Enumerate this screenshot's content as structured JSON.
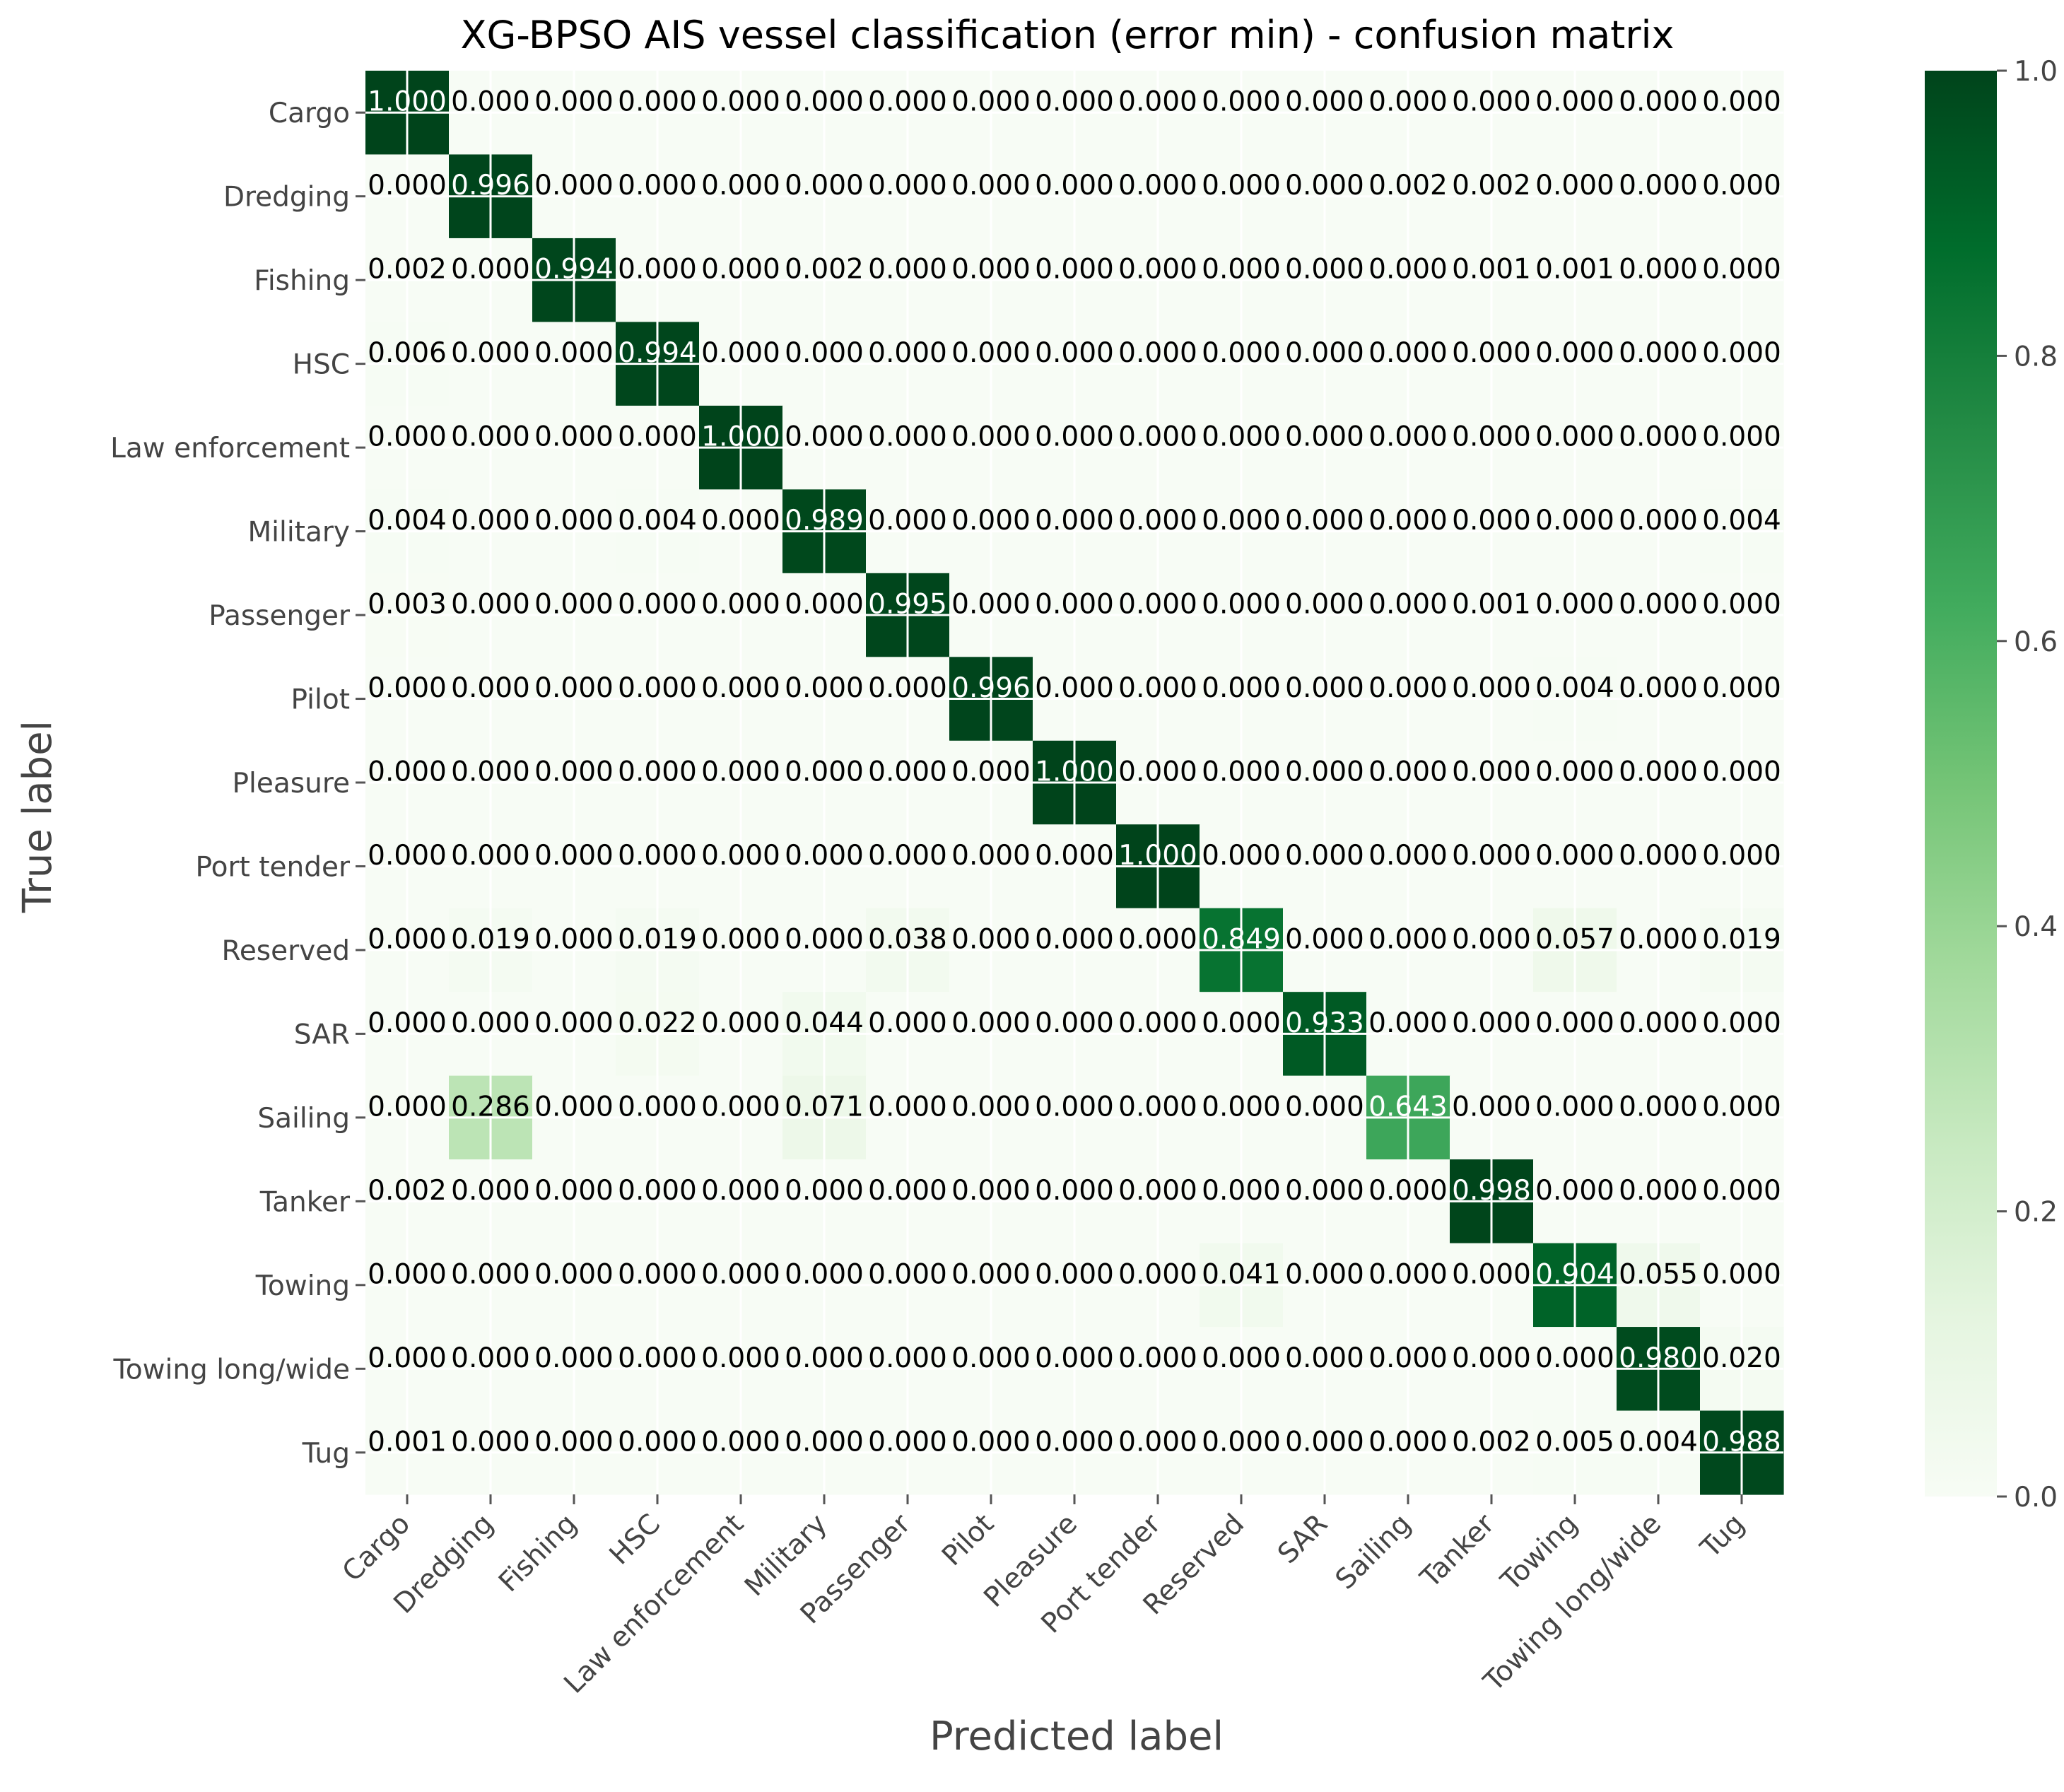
{
  "chart_data": {
    "type": "heatmap",
    "title": "XG-BPSO AIS vessel classification (error min) -  confusion matrix",
    "xlabel": "Predicted label",
    "ylabel": "True label",
    "labels": [
      "Cargo",
      "Dredging",
      "Fishing",
      "HSC",
      "Law enforcement",
      "Military",
      "Passenger",
      "Pilot",
      "Pleasure",
      "Port tender",
      "Reserved",
      "SAR",
      "Sailing",
      "Tanker",
      "Towing",
      "Towing long/wide",
      "Tug"
    ],
    "matrix": [
      [
        1.0,
        0.0,
        0.0,
        0.0,
        0.0,
        0.0,
        0.0,
        0.0,
        0.0,
        0.0,
        0.0,
        0.0,
        0.0,
        0.0,
        0.0,
        0.0,
        0.0
      ],
      [
        0.0,
        0.996,
        0.0,
        0.0,
        0.0,
        0.0,
        0.0,
        0.0,
        0.0,
        0.0,
        0.0,
        0.0,
        0.002,
        0.002,
        0.0,
        0.0,
        0.0
      ],
      [
        0.002,
        0.0,
        0.994,
        0.0,
        0.0,
        0.002,
        0.0,
        0.0,
        0.0,
        0.0,
        0.0,
        0.0,
        0.0,
        0.001,
        0.001,
        0.0,
        0.0
      ],
      [
        0.006,
        0.0,
        0.0,
        0.994,
        0.0,
        0.0,
        0.0,
        0.0,
        0.0,
        0.0,
        0.0,
        0.0,
        0.0,
        0.0,
        0.0,
        0.0,
        0.0
      ],
      [
        0.0,
        0.0,
        0.0,
        0.0,
        1.0,
        0.0,
        0.0,
        0.0,
        0.0,
        0.0,
        0.0,
        0.0,
        0.0,
        0.0,
        0.0,
        0.0,
        0.0
      ],
      [
        0.004,
        0.0,
        0.0,
        0.004,
        0.0,
        0.989,
        0.0,
        0.0,
        0.0,
        0.0,
        0.0,
        0.0,
        0.0,
        0.0,
        0.0,
        0.0,
        0.004
      ],
      [
        0.003,
        0.0,
        0.0,
        0.0,
        0.0,
        0.0,
        0.995,
        0.0,
        0.0,
        0.0,
        0.0,
        0.0,
        0.0,
        0.001,
        0.0,
        0.0,
        0.0
      ],
      [
        0.0,
        0.0,
        0.0,
        0.0,
        0.0,
        0.0,
        0.0,
        0.996,
        0.0,
        0.0,
        0.0,
        0.0,
        0.0,
        0.0,
        0.004,
        0.0,
        0.0
      ],
      [
        0.0,
        0.0,
        0.0,
        0.0,
        0.0,
        0.0,
        0.0,
        0.0,
        1.0,
        0.0,
        0.0,
        0.0,
        0.0,
        0.0,
        0.0,
        0.0,
        0.0
      ],
      [
        0.0,
        0.0,
        0.0,
        0.0,
        0.0,
        0.0,
        0.0,
        0.0,
        0.0,
        1.0,
        0.0,
        0.0,
        0.0,
        0.0,
        0.0,
        0.0,
        0.0
      ],
      [
        0.0,
        0.019,
        0.0,
        0.019,
        0.0,
        0.0,
        0.038,
        0.0,
        0.0,
        0.0,
        0.849,
        0.0,
        0.0,
        0.0,
        0.057,
        0.0,
        0.019
      ],
      [
        0.0,
        0.0,
        0.0,
        0.022,
        0.0,
        0.044,
        0.0,
        0.0,
        0.0,
        0.0,
        0.0,
        0.933,
        0.0,
        0.0,
        0.0,
        0.0,
        0.0
      ],
      [
        0.0,
        0.286,
        0.0,
        0.0,
        0.0,
        0.071,
        0.0,
        0.0,
        0.0,
        0.0,
        0.0,
        0.0,
        0.643,
        0.0,
        0.0,
        0.0,
        0.0
      ],
      [
        0.002,
        0.0,
        0.0,
        0.0,
        0.0,
        0.0,
        0.0,
        0.0,
        0.0,
        0.0,
        0.0,
        0.0,
        0.0,
        0.998,
        0.0,
        0.0,
        0.0
      ],
      [
        0.0,
        0.0,
        0.0,
        0.0,
        0.0,
        0.0,
        0.0,
        0.0,
        0.0,
        0.0,
        0.041,
        0.0,
        0.0,
        0.0,
        0.904,
        0.055,
        0.0
      ],
      [
        0.0,
        0.0,
        0.0,
        0.0,
        0.0,
        0.0,
        0.0,
        0.0,
        0.0,
        0.0,
        0.0,
        0.0,
        0.0,
        0.0,
        0.0,
        0.98,
        0.02
      ],
      [
        0.001,
        0.0,
        0.0,
        0.0,
        0.0,
        0.0,
        0.0,
        0.0,
        0.0,
        0.0,
        0.0,
        0.0,
        0.0,
        0.002,
        0.005,
        0.004,
        0.988
      ]
    ],
    "colormap": "Greens",
    "colors": {
      "low": "#f7fcf5",
      "high": "#00441b"
    },
    "value_range": [
      0,
      1
    ],
    "colorbar": {
      "ticks": [
        "0.0",
        "0.2",
        "0.4",
        "0.6",
        "0.8",
        "1.0"
      ]
    },
    "grid": true,
    "legend": "none"
  }
}
